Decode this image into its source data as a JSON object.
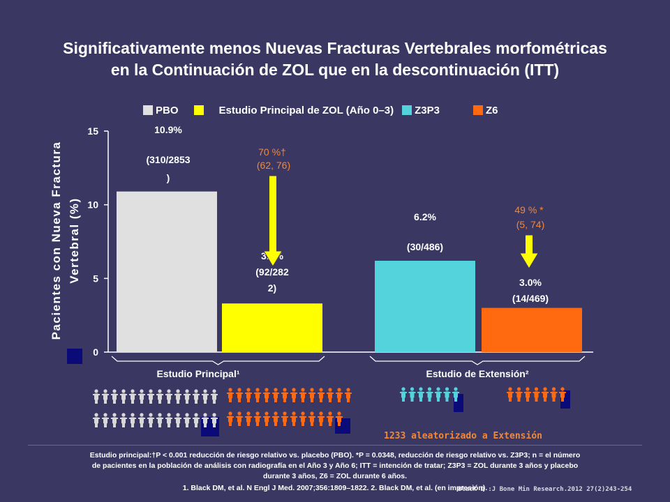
{
  "title_line1": "Significativamente menos Nuevas Fracturas Vertebrales morfométricas",
  "title_line2": "en la Continuación de ZOL que en la descontinuación (ITT)",
  "legend": [
    {
      "label": "PBO",
      "color": "#e0e0e0"
    },
    {
      "label": "Estudio Principal de ZOL (Año 0–3)",
      "color": "#ffff00"
    },
    {
      "label": "Z3P3",
      "color": "#55d3dc"
    },
    {
      "label": "Z6",
      "color": "#ff6a10"
    }
  ],
  "chart_data": {
    "type": "bar",
    "ylabel": "Pacientes con Nueva Fractura Vertebral (%)",
    "ylim": [
      0,
      15
    ],
    "yticks": [
      "0",
      "5",
      "10",
      "15"
    ],
    "groups": [
      "Estudio Principal¹",
      "Estudio de Extensión²"
    ],
    "bars": [
      {
        "series": "PBO",
        "group": 0,
        "value": 10.9,
        "color": "#e0e0e0",
        "label1": "10.9%",
        "label2": "(310/2853",
        "label3": ")"
      },
      {
        "series": "Estudio Principal de ZOL (Año 0–3)",
        "group": 0,
        "value": 3.3,
        "color": "#ffff00",
        "label1": "3.3%",
        "label2": "(92/282",
        "label3": "2)"
      },
      {
        "series": "Z3P3",
        "group": 1,
        "value": 6.2,
        "color": "#55d3dc",
        "label1": "6.2%",
        "label2": "(30/486)",
        "label3": ""
      },
      {
        "series": "Z6",
        "group": 1,
        "value": 3.0,
        "color": "#ff6a10",
        "label1": "3.0%",
        "label2": "(14/469)",
        "label3": ""
      }
    ],
    "annotations": [
      {
        "line1": "70 %†",
        "line2": "(62, 76)",
        "color": "#f0883c"
      },
      {
        "line1": "49 % *",
        "line2": "(5, 74)",
        "color": "#f0883c"
      }
    ]
  },
  "extension_note": "1233 aleatorizado a Extensión",
  "footnote_line1": "Estudio principal:†P < 0.001 reducción de riesgo relativo vs. placebo (PBO). *P = 0.0348, reducción de riesgo relativo vs. Z3P3; n = el número",
  "footnote_line2": "de pacientes en la población de análisis con radiografía en el Año 3 y Año 6;  ITT = intención de tratar; Z3P3 = ZOL durante 3 años y placebo",
  "footnote_line3": "durante 3 años, Z6 = ZOL durante 6 años.",
  "references": "1. Black DM, et al. N Engl J Med. 2007;356:1809–1822.  2. Black DM, et al. (en impresión).",
  "citation": "Black D :J Bone Min Research.2012 27(2)243-254",
  "colors": {
    "background": "#3a3862",
    "accent": "#f0883c",
    "arrow": "#ffff00",
    "people_gray": "#d8d8d8",
    "people_orange": "#ff6a10",
    "people_cyan": "#55d3dc",
    "marker": "#0a0a78"
  }
}
